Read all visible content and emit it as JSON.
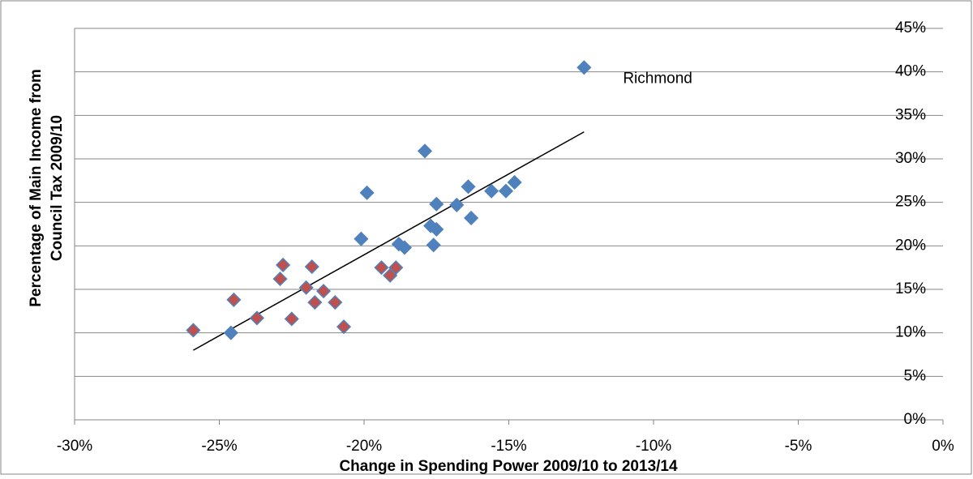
{
  "chart_data": {
    "type": "scatter",
    "x_label": "Change in Spending Power 2009/10 to 2013/14",
    "y_label": [
      "Percentage of Main Income from",
      "Council Tax 2009/10"
    ],
    "xlim": [
      -30,
      0
    ],
    "xticks": [
      {
        "value": -30,
        "label": "-30%"
      },
      {
        "value": -25,
        "label": "-25%"
      },
      {
        "value": -20,
        "label": "-20%"
      },
      {
        "value": -15,
        "label": "-15%"
      },
      {
        "value": -10,
        "label": "-10%"
      },
      {
        "value": -5,
        "label": "-5%"
      },
      {
        "value": 0,
        "label": "0%"
      }
    ],
    "ylim": [
      0,
      45
    ],
    "yticks": [
      {
        "value": 0,
        "label": "0%"
      },
      {
        "value": 5,
        "label": "5%"
      },
      {
        "value": 10,
        "label": "10%"
      },
      {
        "value": 15,
        "label": "15%"
      },
      {
        "value": 20,
        "label": "20%"
      },
      {
        "value": 25,
        "label": "25%"
      },
      {
        "value": 30,
        "label": "30%"
      },
      {
        "value": 35,
        "label": "35%"
      },
      {
        "value": 40,
        "label": "40%"
      },
      {
        "value": 45,
        "label": "45%"
      }
    ],
    "grid": true,
    "series": [
      {
        "color": "#4f81bd",
        "x": [
          -12.4,
          -17.9,
          -19.9,
          -14.8,
          -15.1,
          -15.6,
          -16.4,
          -16.8,
          -17.5,
          -16.3,
          -17.7,
          -17.5,
          -20.1,
          -17.6,
          -18.8,
          -18.6,
          -24.6
        ],
        "y": [
          40.5,
          30.9,
          26.1,
          27.3,
          26.3,
          26.3,
          26.8,
          24.7,
          24.8,
          23.2,
          22.3,
          21.9,
          20.8,
          20.1,
          20.2,
          19.8,
          10.0
        ]
      },
      {
        "color": "#c0504d",
        "x": [
          -25.9,
          -24.5,
          -23.7,
          -22.9,
          -22.8,
          -22.5,
          -22.0,
          -21.8,
          -21.7,
          -21.4,
          -21.0,
          -20.7,
          -19.4,
          -19.1,
          -18.9
        ],
        "y": [
          10.3,
          13.8,
          11.7,
          16.2,
          17.8,
          11.6,
          15.2,
          17.6,
          13.5,
          14.8,
          13.5,
          10.7,
          17.5,
          16.6,
          17.5
        ]
      }
    ],
    "trendline": {
      "x": [
        -25.9,
        -12.4
      ],
      "y": [
        8.0,
        33.1
      ]
    },
    "annotations": [
      {
        "text": "Richmond",
        "x": -12.4,
        "y": 40.5
      }
    ]
  }
}
